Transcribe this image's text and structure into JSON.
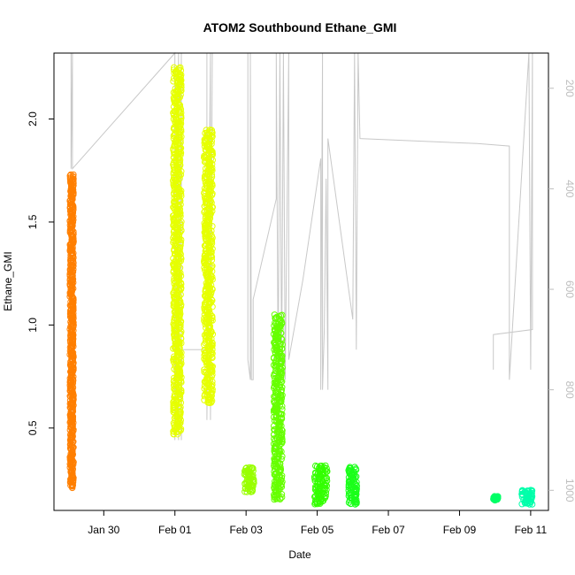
{
  "chart_data": {
    "type": "scatter",
    "title": "ATOM2 Southbound Ethane_GMI",
    "xlabel": "Date",
    "ylabel": "Ethane_GMI",
    "x_ticks": [
      "Jan 30",
      "Feb 01",
      "Feb 03",
      "Feb 05",
      "Feb 07",
      "Feb 09",
      "Feb 11"
    ],
    "x_tick_days": [
      0,
      2,
      4,
      6,
      8,
      10,
      12
    ],
    "xlim_days": [
      -1.4,
      12.5
    ],
    "y_ticks": [
      0.5,
      1.0,
      1.5,
      2.0
    ],
    "y_tick_labels": [
      "0.5",
      "1.0",
      "1.5",
      "2.0"
    ],
    "ylim": [
      0.1,
      2.32
    ],
    "y2_ticks": [
      200,
      400,
      600,
      800,
      1000
    ],
    "y2_tick_labels": [
      "200",
      "400",
      "600",
      "800",
      "1000"
    ],
    "y2lim_reversed": [
      1040,
      130
    ],
    "grid": false,
    "clusters": [
      {
        "x_start": -0.95,
        "x_end": -0.85,
        "y_min": 0.21,
        "y_max": 1.73,
        "color": "#ff7f00"
      },
      {
        "x_start": 1.95,
        "x_end": 2.18,
        "y_min": 0.47,
        "y_max": 2.25,
        "color": "#e6ff00"
      },
      {
        "x_start": 2.82,
        "x_end": 3.06,
        "y_min": 0.62,
        "y_max": 1.95,
        "color": "#e6ff00"
      },
      {
        "x_start": 3.95,
        "x_end": 4.22,
        "y_min": 0.19,
        "y_max": 0.31,
        "color": "#99ff00"
      },
      {
        "x_start": 4.78,
        "x_end": 5.02,
        "y_min": 0.15,
        "y_max": 1.05,
        "color": "#66ff00"
      },
      {
        "x_start": 5.92,
        "x_end": 6.28,
        "y_min": 0.13,
        "y_max": 0.32,
        "color": "#33ff00"
      },
      {
        "x_start": 6.88,
        "x_end": 7.12,
        "y_min": 0.13,
        "y_max": 0.31,
        "color": "#1aff1a"
      },
      {
        "x_start": 10.95,
        "x_end": 11.08,
        "y_min": 0.15,
        "y_max": 0.17,
        "color": "#00ff66"
      },
      {
        "x_start": 11.75,
        "x_end": 12.05,
        "y_min": 0.13,
        "y_max": 0.2,
        "color": "#00ffaa"
      }
    ],
    "altitude_track": [
      [
        -0.92,
        130
      ],
      [
        -0.92,
        360
      ],
      [
        -0.88,
        130
      ],
      [
        -0.88,
        360
      ],
      [
        2.0,
        130
      ],
      [
        2.0,
        900
      ],
      [
        2.1,
        130
      ],
      [
        2.1,
        900
      ],
      [
        2.18,
        130
      ],
      [
        2.18,
        900
      ],
      [
        2.2,
        720
      ],
      [
        2.9,
        720
      ],
      [
        2.9,
        130
      ],
      [
        2.9,
        860
      ],
      [
        3.0,
        130
      ],
      [
        3.0,
        860
      ],
      [
        3.05,
        130
      ],
      [
        4.05,
        130
      ],
      [
        4.05,
        740
      ],
      [
        4.12,
        780
      ],
      [
        4.12,
        130
      ],
      [
        4.15,
        780
      ],
      [
        4.2,
        780
      ],
      [
        4.2,
        620
      ],
      [
        4.85,
        420
      ],
      [
        4.85,
        130
      ],
      [
        4.9,
        760
      ],
      [
        4.95,
        130
      ],
      [
        5.0,
        760
      ],
      [
        5.05,
        130
      ],
      [
        5.1,
        780
      ],
      [
        5.2,
        130
      ],
      [
        5.2,
        740
      ],
      [
        5.6,
        580
      ],
      [
        6.1,
        340
      ],
      [
        6.1,
        800
      ],
      [
        6.15,
        130
      ],
      [
        6.15,
        800
      ],
      [
        6.2,
        680
      ],
      [
        6.25,
        380
      ],
      [
        6.3,
        800
      ],
      [
        6.3,
        300
      ],
      [
        7.0,
        660
      ],
      [
        7.05,
        130
      ],
      [
        7.1,
        720
      ],
      [
        7.15,
        130
      ],
      [
        7.2,
        300
      ],
      [
        10.5,
        310
      ],
      [
        11.4,
        315
      ],
      [
        11.4,
        780
      ],
      [
        11.95,
        130
      ],
      [
        12.0,
        760
      ],
      [
        12.05,
        130
      ],
      [
        12.05,
        680
      ],
      [
        10.95,
        690
      ],
      [
        10.95,
        760
      ]
    ]
  }
}
